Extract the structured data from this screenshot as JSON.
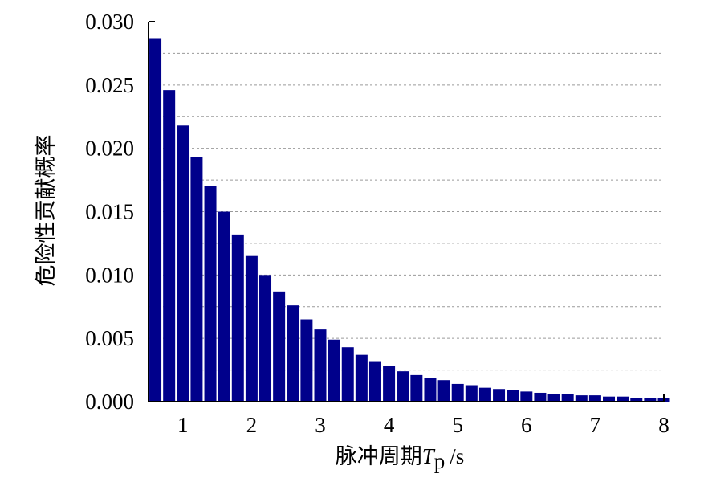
{
  "chart_data": {
    "type": "bar",
    "title": "",
    "xlabel_prefix": "脉冲周期",
    "xlabel_var": "T",
    "xlabel_sub": "p",
    "xlabel_unit": "/s",
    "ylabel": "危险性贡献概率",
    "xlim": [
      0.5,
      8
    ],
    "ylim": [
      0,
      0.03
    ],
    "xticks": [
      "1",
      "2",
      "3",
      "4",
      "5",
      "6",
      "7",
      "8"
    ],
    "yticks": [
      "0.000",
      "0.005",
      "0.010",
      "0.015",
      "0.020",
      "0.025",
      "0.030"
    ],
    "grid": "horizontal-dashed",
    "bar_color": "#00008b",
    "x": [
      0.6,
      0.8,
      1.0,
      1.2,
      1.4,
      1.6,
      1.8,
      2.0,
      2.2,
      2.4,
      2.6,
      2.8,
      3.0,
      3.2,
      3.4,
      3.6,
      3.8,
      4.0,
      4.2,
      4.4,
      4.6,
      4.8,
      5.0,
      5.2,
      5.4,
      5.6,
      5.8,
      6.0,
      6.2,
      6.4,
      6.6,
      6.8,
      7.0,
      7.2,
      7.4,
      7.6,
      7.8,
      8.0
    ],
    "values": [
      0.0287,
      0.0246,
      0.0218,
      0.0193,
      0.017,
      0.015,
      0.0132,
      0.0115,
      0.01,
      0.0087,
      0.0076,
      0.0065,
      0.0057,
      0.0049,
      0.0043,
      0.0037,
      0.0032,
      0.0028,
      0.0024,
      0.0021,
      0.0019,
      0.0017,
      0.0014,
      0.0013,
      0.0011,
      0.001,
      0.0009,
      0.0008,
      0.0007,
      0.0006,
      0.0006,
      0.0005,
      0.0005,
      0.0004,
      0.0004,
      0.0003,
      0.0003,
      0.0003
    ]
  }
}
